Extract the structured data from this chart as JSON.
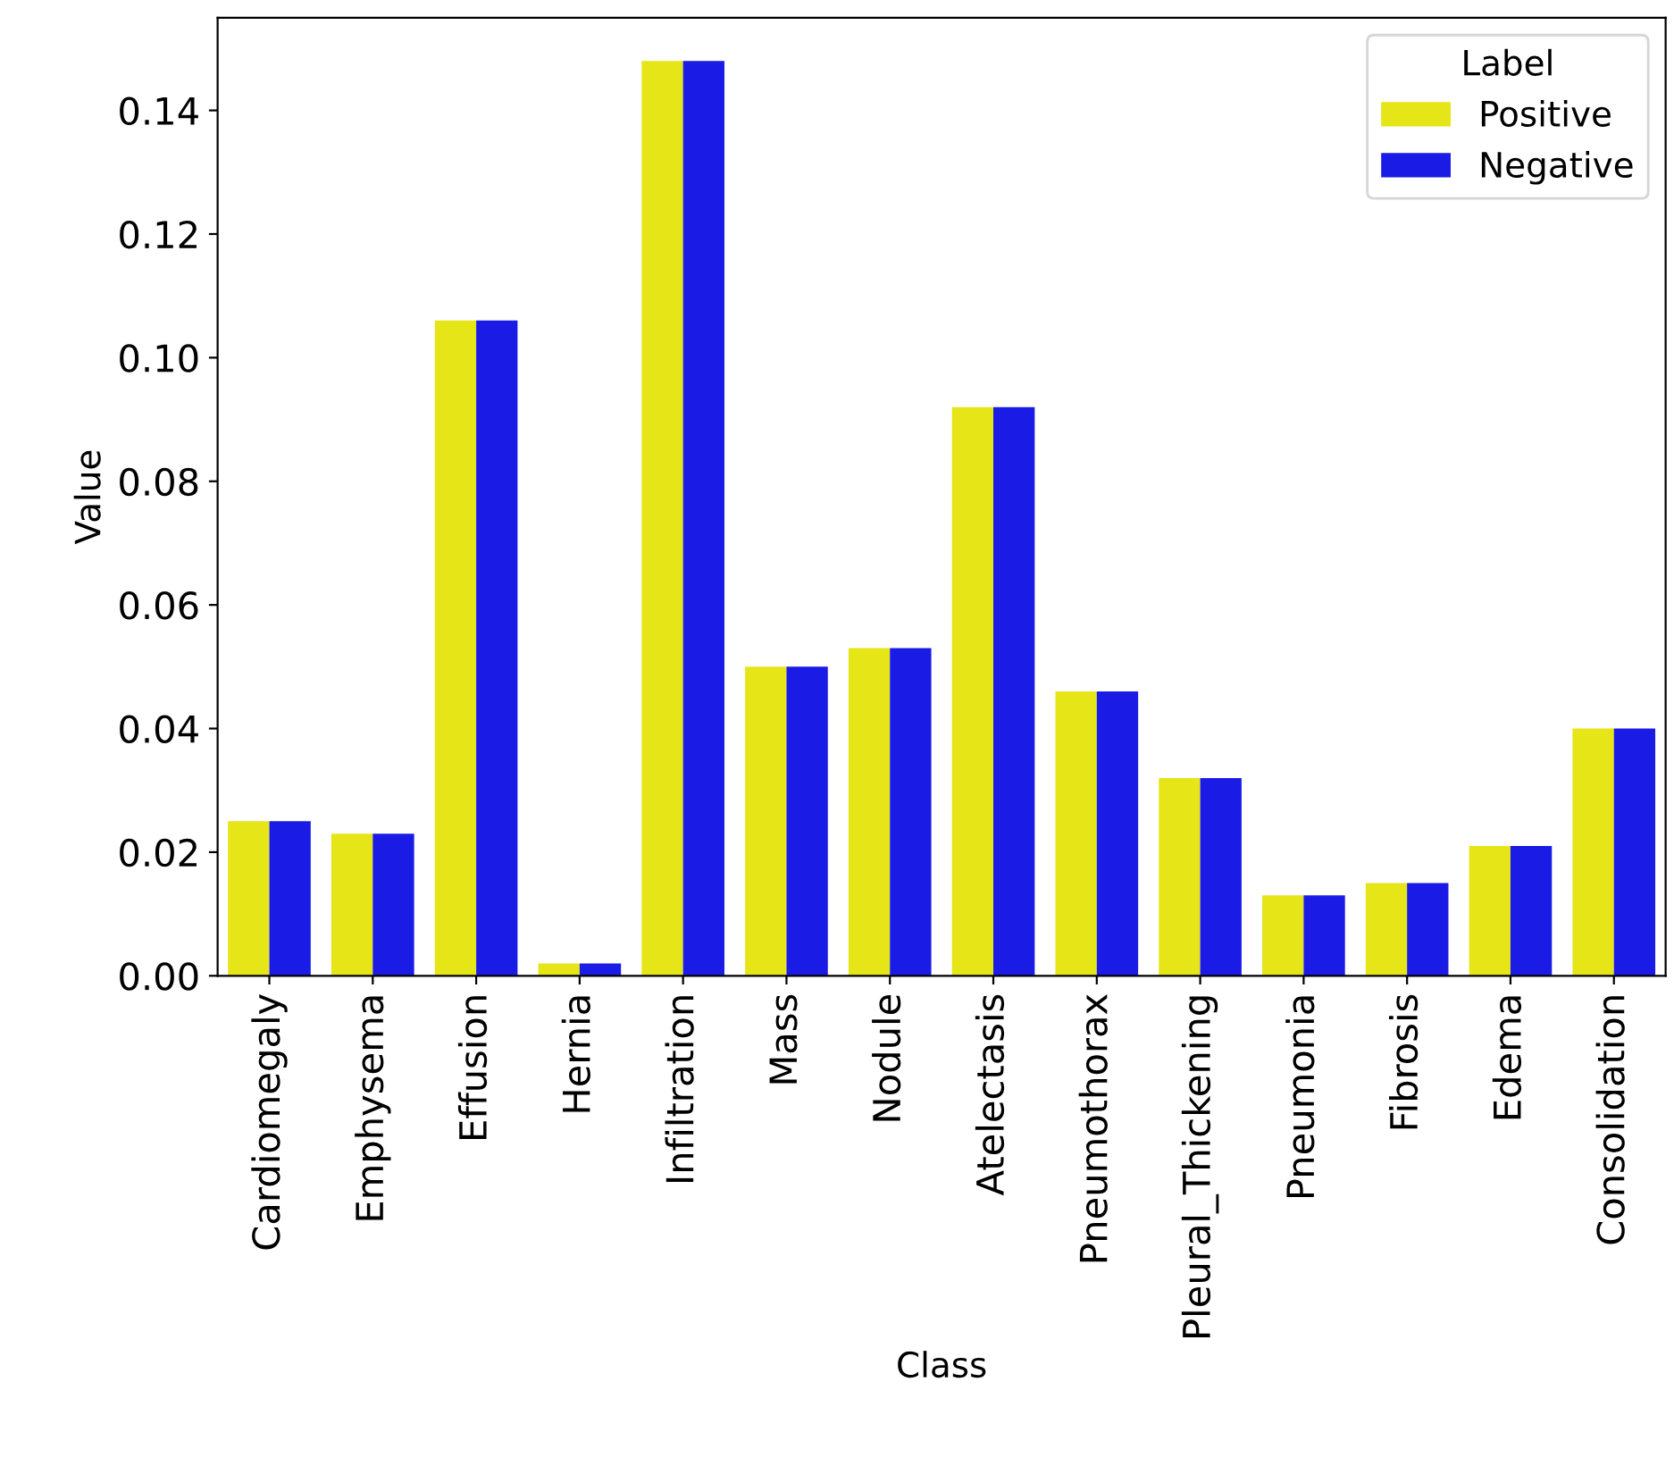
{
  "chart_data": {
    "type": "bar",
    "xlabel": "Class",
    "ylabel": "Value",
    "legend_title": "Label",
    "legend": "top right",
    "categories": [
      "Cardiomegaly",
      "Emphysema",
      "Effusion",
      "Hernia",
      "Infiltration",
      "Mass",
      "Nodule",
      "Atelectasis",
      "Pneumothorax",
      "Pleural_Thickening",
      "Pneumonia",
      "Fibrosis",
      "Edema",
      "Consolidation"
    ],
    "series": [
      {
        "name": "Positive",
        "color": "#e5e517",
        "values": [
          0.025,
          0.023,
          0.106,
          0.002,
          0.148,
          0.05,
          0.053,
          0.092,
          0.046,
          0.032,
          0.013,
          0.015,
          0.021,
          0.04
        ]
      },
      {
        "name": "Negative",
        "color": "#1b1be6",
        "values": [
          0.025,
          0.023,
          0.106,
          0.002,
          0.148,
          0.05,
          0.053,
          0.092,
          0.046,
          0.032,
          0.013,
          0.015,
          0.021,
          0.04
        ]
      }
    ],
    "ylim": [
      0,
      0.155
    ],
    "yticks": [
      {
        "value": 0,
        "label": "0.00"
      },
      {
        "value": 0.02,
        "label": "0.02"
      },
      {
        "value": 0.04,
        "label": "0.04"
      },
      {
        "value": 0.06,
        "label": "0.06"
      },
      {
        "value": 0.08,
        "label": "0.08"
      },
      {
        "value": 0.1,
        "label": "0.10"
      },
      {
        "value": 0.12,
        "label": "0.12"
      },
      {
        "value": 0.14,
        "label": "0.14"
      }
    ]
  }
}
